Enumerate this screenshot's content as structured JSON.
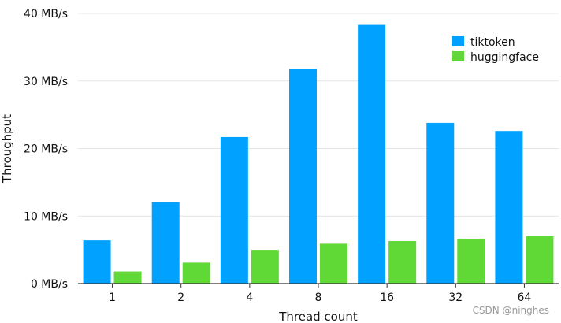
{
  "chart_data": {
    "type": "bar",
    "title": "",
    "xlabel": "Thread count",
    "ylabel": "Throughput",
    "categories": [
      "1",
      "2",
      "4",
      "8",
      "16",
      "32",
      "64"
    ],
    "series": [
      {
        "name": "tiktoken",
        "color": "#00a1ff",
        "values": [
          6.4,
          12.1,
          21.7,
          31.8,
          38.3,
          23.8,
          22.6
        ]
      },
      {
        "name": "huggingface",
        "color": "#60d836",
        "values": [
          1.8,
          3.1,
          5.0,
          5.9,
          6.3,
          6.6,
          7.0
        ]
      }
    ],
    "ylim": [
      0,
      40
    ],
    "yticks": [
      0,
      10,
      20,
      30,
      40
    ],
    "ytick_labels": [
      "0 MB/s",
      "10 MB/s",
      "20 MB/s",
      "30 MB/s",
      "40 MB/s"
    ],
    "grid": "horizontal",
    "legend": "top-right"
  },
  "watermark": "CSDN @ninghes"
}
